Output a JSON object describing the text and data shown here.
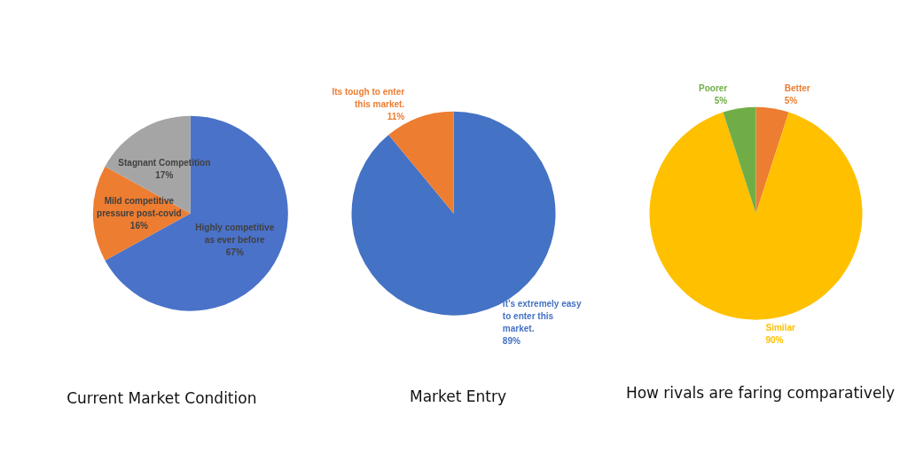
{
  "chart_data": [
    {
      "type": "pie",
      "title": "Current Market Condition",
      "categories": [
        "Highly competitive as ever before",
        "Mild competitive pressure post-covid",
        "Stagnant Competition"
      ],
      "values": [
        67,
        16,
        17
      ],
      "value_labels": [
        "67%",
        "16%",
        "17%"
      ],
      "colors": [
        "#4a72c9",
        "#ed7d31",
        "#a5a5a5"
      ]
    },
    {
      "type": "pie",
      "title": "Market Entry",
      "categories": [
        "It’s extremely easy to enter this market.",
        "Its tough to enter this market."
      ],
      "values": [
        89,
        11
      ],
      "value_labels": [
        "89%",
        "11%"
      ],
      "colors": [
        "#4472c4",
        "#ed7d31"
      ]
    },
    {
      "type": "pie",
      "title": "How rivals are faring comparatively",
      "categories": [
        "Better",
        "Similar",
        "Poorer"
      ],
      "values": [
        5,
        90,
        5
      ],
      "value_labels": [
        "5%",
        "90%",
        "5%"
      ],
      "colors": [
        "#ed7d31",
        "#ffc000",
        "#70ad47"
      ]
    }
  ]
}
